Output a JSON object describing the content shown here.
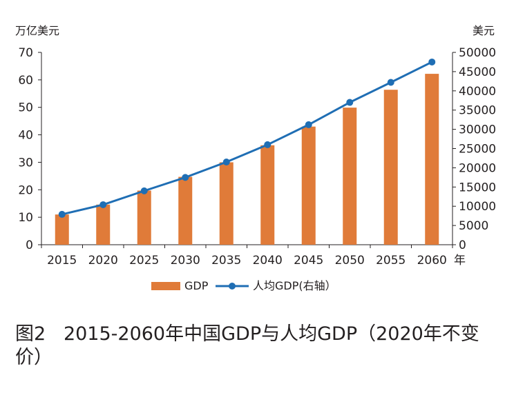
{
  "chart_data": {
    "type": "bar+line",
    "categories": [
      "2015",
      "2020",
      "2025",
      "2030",
      "2035",
      "2040",
      "2045",
      "2050",
      "2055",
      "2060"
    ],
    "x_axis_suffix": "年",
    "series": [
      {
        "name": "GDP",
        "type": "bar",
        "axis": "left",
        "color": "#e07b39",
        "values": [
          11,
          14.6,
          19.7,
          24.7,
          30,
          36.2,
          43,
          49.9,
          56.4,
          62.2
        ]
      },
      {
        "name": "人均GDP(右轴）",
        "type": "line",
        "axis": "right",
        "color": "#1f6eb4",
        "values": [
          7900,
          10400,
          14000,
          17500,
          21500,
          26000,
          31200,
          37000,
          42200,
          47500
        ]
      }
    ],
    "left_axis": {
      "unit_label": "万亿美元",
      "ylim": [
        0,
        70
      ],
      "ticks": [
        "0",
        "10",
        "20",
        "30",
        "40",
        "50",
        "60",
        "70"
      ]
    },
    "right_axis": {
      "unit_label": "美元",
      "ylim": [
        0,
        50000
      ],
      "ticks": [
        "0",
        "5000",
        "10000",
        "15000",
        "20000",
        "25000",
        "30000",
        "35000",
        "40000",
        "45000",
        "50000"
      ]
    },
    "grid": false,
    "legend_placement": "bottom"
  },
  "caption": {
    "figure_no": "图2",
    "text": "2015-2060年中国GDP与人均GDP（2020年不变价）"
  }
}
